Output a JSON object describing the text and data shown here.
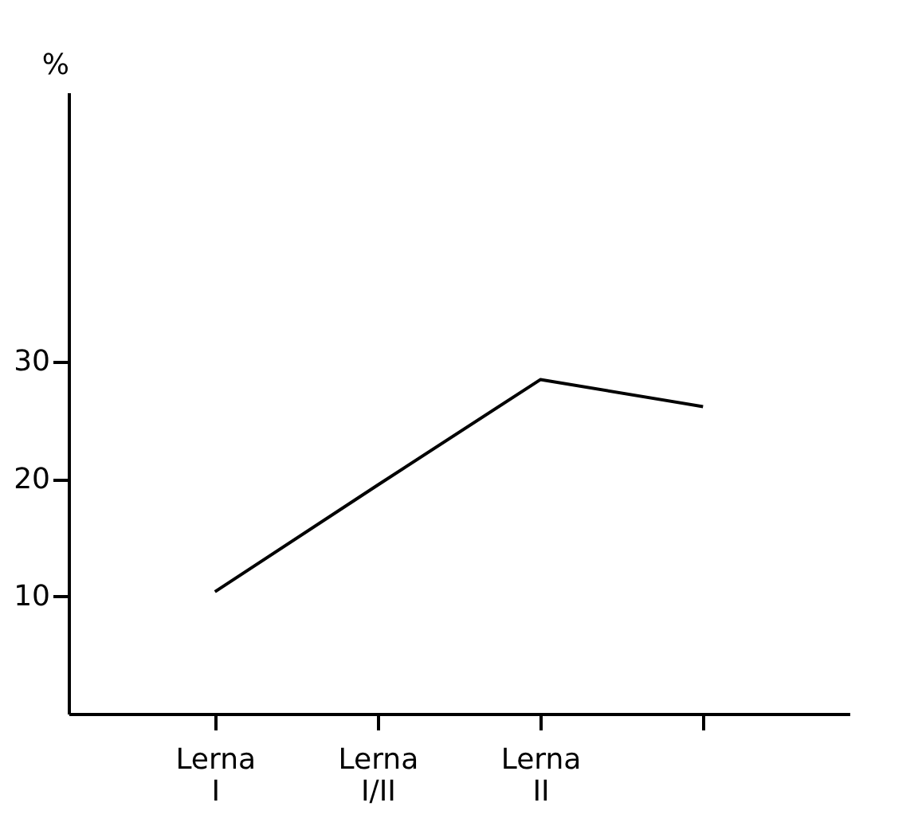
{
  "chart_data": {
    "type": "line",
    "ylabel": "%",
    "categories": [
      "Lerna\nI",
      "Lerna\nI/II",
      "Lerna\nII",
      null
    ],
    "series": [
      {
        "color": "#000000",
        "values": [
          10.4,
          19.5,
          28.5,
          26.2
        ]
      }
    ],
    "ylim": [
      0,
      53
    ],
    "yticks": [
      10,
      20,
      30
    ],
    "grid": false,
    "marker": "none",
    "line_style": "solid"
  }
}
